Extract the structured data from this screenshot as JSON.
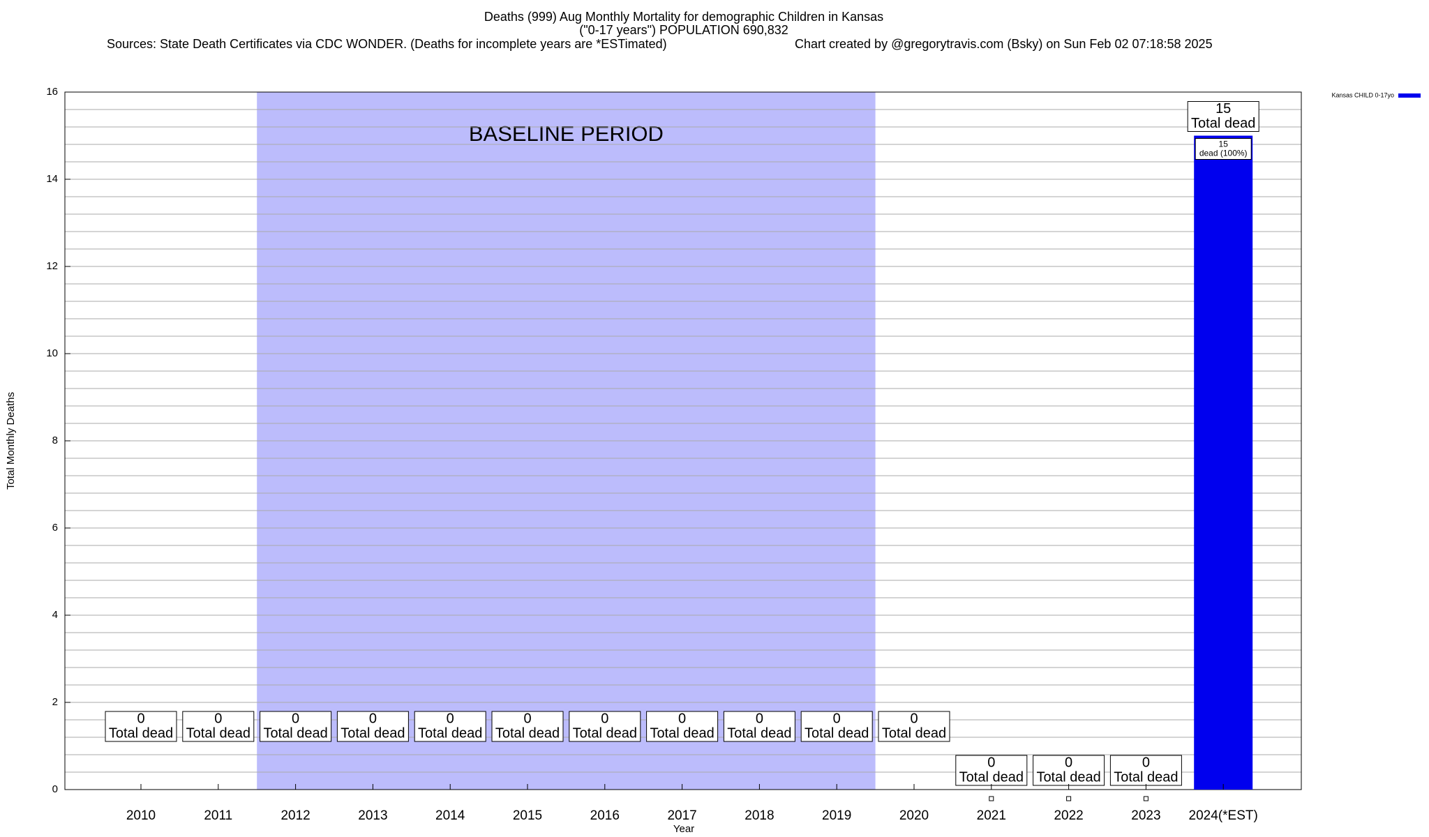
{
  "chart_data": {
    "type": "bar",
    "title": "Deaths (999) Aug Monthly Mortality for demographic Children in Kansas",
    "subtitle": "(\"0-17 years\") POPULATION 690,832",
    "sources": "Sources: State Death Certificates via CDC WONDER. (Deaths for incomplete years are *ESTimated)",
    "credit": "Chart created by @gregorytravis.com (Bsky) on Sun Feb 02 07:18:58 2025",
    "x_label": "Year",
    "y_label": "Total Monthly Deaths",
    "categories": [
      "2010",
      "2011",
      "2012",
      "2013",
      "2014",
      "2015",
      "2016",
      "2017",
      "2018",
      "2019",
      "2020",
      "2021",
      "2022",
      "2023",
      "2024(*EST)"
    ],
    "series": [
      {
        "name": "Kansas CHILD 0-17yo",
        "color": "#0000ee",
        "values": [
          0,
          0,
          0,
          0,
          0,
          0,
          0,
          0,
          0,
          0,
          0,
          0,
          0,
          0,
          15
        ]
      }
    ],
    "total_label_text": "Total dead",
    "segment_label_text": "dead (100%)",
    "shaded_region": {
      "label": "BASELINE PERIOD",
      "from": "2012",
      "to": "2019",
      "color": "#bcbcfc"
    },
    "ylim": [
      0,
      16
    ],
    "yticks": [
      0,
      2,
      4,
      6,
      8,
      10,
      12,
      14,
      16
    ],
    "grid": true,
    "minor_grid_divisions": 5,
    "legend": "top-right"
  }
}
